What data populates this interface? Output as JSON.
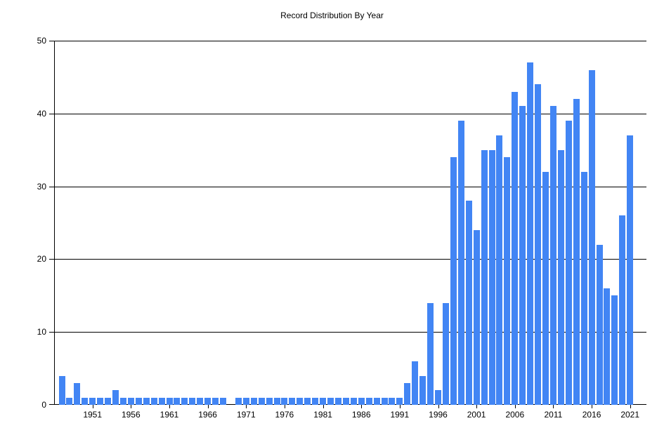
{
  "title": "Record Distribution By Year",
  "chart_data": {
    "type": "bar",
    "title": "Record Distribution By Year",
    "xlabel": "",
    "ylabel": "",
    "x": [
      1947,
      1948,
      1949,
      1950,
      1951,
      1952,
      1953,
      1954,
      1955,
      1956,
      1957,
      1958,
      1959,
      1960,
      1961,
      1962,
      1963,
      1964,
      1965,
      1966,
      1967,
      1968,
      1969,
      1970,
      1971,
      1972,
      1973,
      1974,
      1975,
      1976,
      1977,
      1978,
      1979,
      1980,
      1981,
      1982,
      1983,
      1984,
      1985,
      1986,
      1987,
      1988,
      1989,
      1990,
      1991,
      1992,
      1993,
      1994,
      1995,
      1996,
      1997,
      1998,
      1999,
      2000,
      2001,
      2002,
      2003,
      2004,
      2005,
      2006,
      2007,
      2008,
      2009,
      2010,
      2011,
      2012,
      2013,
      2014,
      2015,
      2016,
      2017,
      2018,
      2019,
      2020,
      2021
    ],
    "values": [
      4,
      1,
      3,
      1,
      1,
      1,
      1,
      2,
      1,
      1,
      1,
      1,
      1,
      1,
      1,
      1,
      1,
      1,
      1,
      1,
      1,
      1,
      0,
      1,
      1,
      1,
      1,
      1,
      1,
      1,
      1,
      1,
      1,
      1,
      1,
      1,
      1,
      1,
      1,
      1,
      1,
      1,
      1,
      1,
      1,
      3,
      6,
      4,
      14,
      2,
      14,
      34,
      39,
      28,
      24,
      35,
      35,
      37,
      34,
      43,
      41,
      47,
      44,
      32,
      41,
      35,
      39,
      42,
      32,
      46,
      22,
      16,
      15,
      26,
      37
    ],
    "xticks": [
      1951,
      1956,
      1961,
      1966,
      1971,
      1976,
      1981,
      1986,
      1991,
      1996,
      2001,
      2006,
      2011,
      2016,
      2021
    ],
    "yticks": [
      0,
      10,
      20,
      30,
      40,
      50
    ],
    "ylim": [
      0,
      50
    ],
    "grid": "horizontal-major",
    "legend": "none",
    "bar_color": "#4285F4",
    "axis_color": "#000000",
    "text_color": "#000000"
  }
}
